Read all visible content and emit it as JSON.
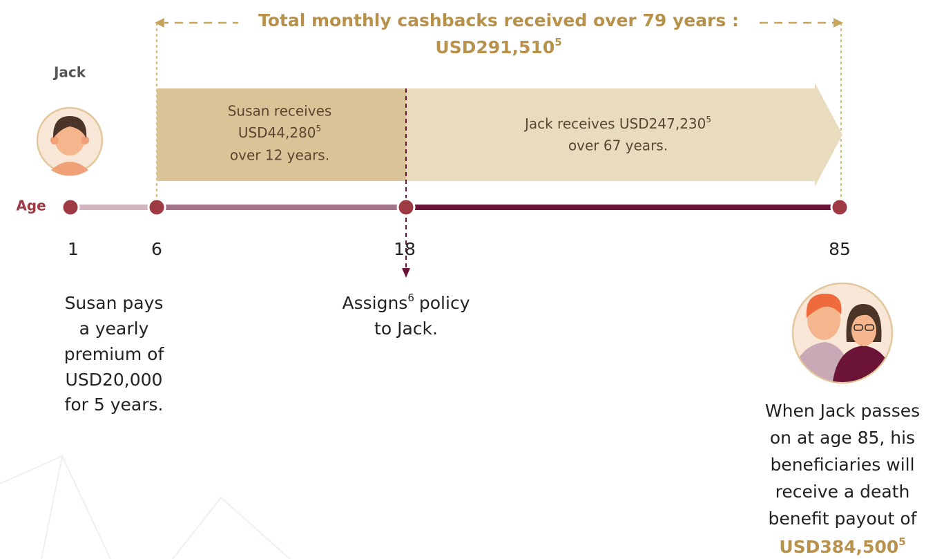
{
  "header": {
    "title": "Total monthly cashbacks received over 79 years :",
    "total": "USD291,510",
    "total_note": "5"
  },
  "person": "Jack",
  "axis_label": "Age",
  "ages": [
    1,
    6,
    18,
    85
  ],
  "susan_period": {
    "line1": "Susan receives",
    "amount": "USD44,280",
    "note": "5",
    "line3": "over 12 years."
  },
  "jack_period": {
    "line1": "Jack receives USD247,230",
    "note": "5",
    "line2": "over 67 years."
  },
  "premium_note": {
    "lines": [
      "Susan pays",
      "a yearly",
      "premium of",
      "USD20,000",
      "for 5 years."
    ]
  },
  "assign_note": {
    "word": "Assigns",
    "note": "6",
    "rest": "policy",
    "line2": "to Jack."
  },
  "death_benefit": {
    "lines": [
      "When Jack passes",
      "on at age 85, his",
      "beneficiaries will",
      "receive a death",
      "benefit payout of"
    ],
    "amount": "USD384,500",
    "note": "5"
  }
}
